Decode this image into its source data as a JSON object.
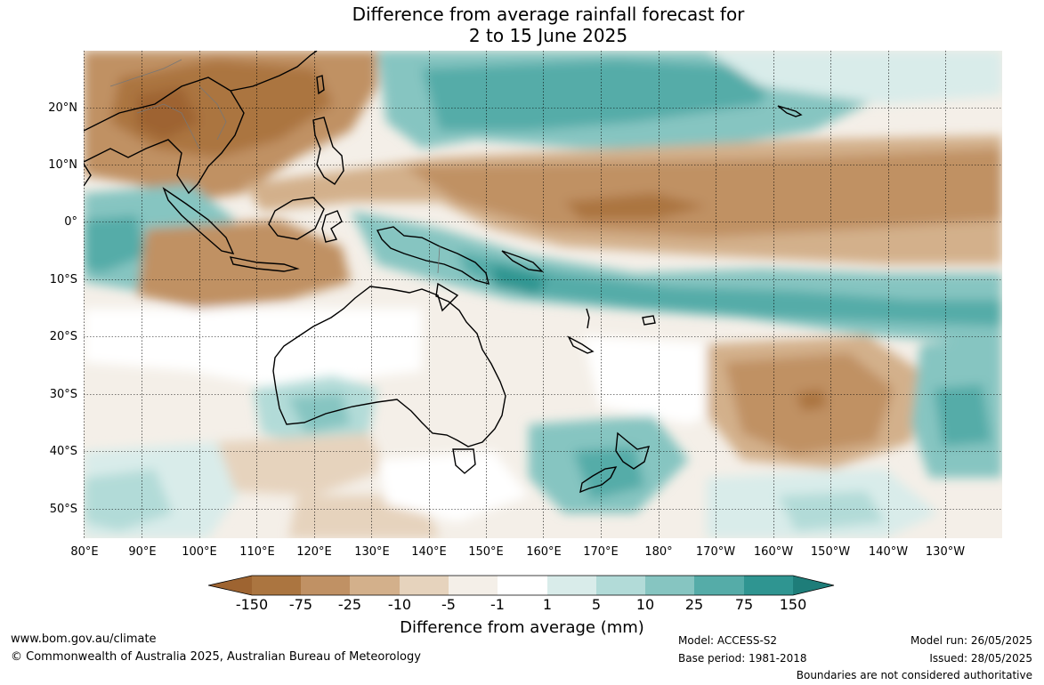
{
  "title_line1": "Difference from average rainfall forecast for",
  "title_line2": "2 to 15 June 2025",
  "lat_labels": [
    "20°N",
    "10°N",
    "0°",
    "10°S",
    "20°S",
    "30°S",
    "40°S",
    "50°S"
  ],
  "lon_labels": [
    "80°E",
    "90°E",
    "100°E",
    "110°E",
    "120°E",
    "130°E",
    "140°E",
    "150°E",
    "160°E",
    "170°E",
    "180°",
    "170°W",
    "160°W",
    "150°W",
    "140°W",
    "130°W"
  ],
  "legend": {
    "title": "Difference from average (mm)",
    "ticks": [
      "-150",
      "-75",
      "-25",
      "-10",
      "-5",
      "-1",
      "1",
      "5",
      "10",
      "25",
      "75",
      "150"
    ],
    "colors": [
      "#9e6431",
      "#ab7540",
      "#c09164",
      "#d3b08b",
      "#e6d3bd",
      "#f4efe8",
      "#ffffff",
      "#d9ecea",
      "#b2dbd8",
      "#86c5c1",
      "#55aca8",
      "#2f9591",
      "#1e7d79"
    ]
  },
  "footer": {
    "website": "www.bom.gov.au/climate",
    "copyright": "© Commonwealth of Australia 2025, Australian Bureau of Meteorology",
    "model": "Model: ACCESS-S2",
    "base_period": "Base period: 1981-2018",
    "model_run": "Model run: 26/05/2025",
    "issued": "Issued: 28/05/2025",
    "disclaimer": "Boundaries are not considered authoritative"
  }
}
